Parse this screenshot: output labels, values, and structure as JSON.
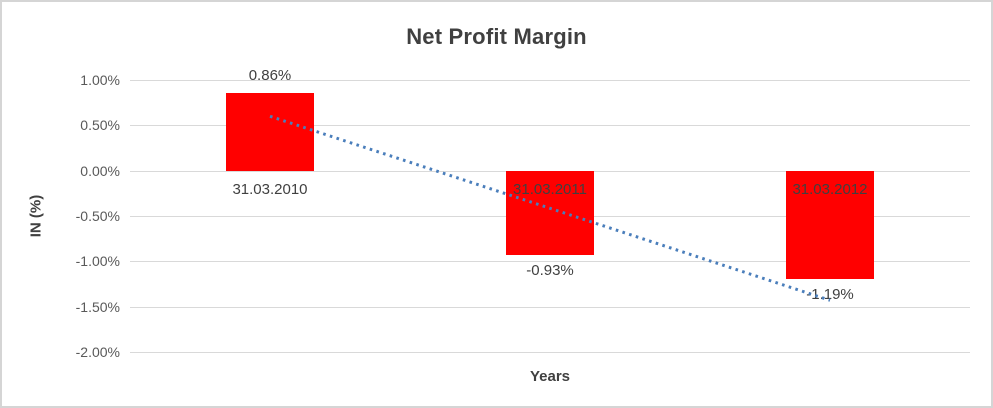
{
  "frame": {
    "border_color": "#d5d5d5",
    "background": "#ffffff"
  },
  "chart_data": {
    "type": "bar",
    "title": "Net Profit Margin",
    "xlabel": "Years",
    "ylabel": "IN (%)",
    "categories": [
      "31.03.2010",
      "31.03.2011",
      "31.03.2012"
    ],
    "values": [
      0.86,
      -0.93,
      -1.19
    ],
    "data_labels": [
      "0.86%",
      "-0.93%",
      "-1.19%"
    ],
    "ylim": [
      -2.0,
      1.0
    ],
    "ytick_step": 0.5,
    "ytick_labels": [
      "1.00%",
      "0.50%",
      "0.00%",
      "-0.50%",
      "-1.00%",
      "-1.50%",
      "-2.00%"
    ],
    "grid": true,
    "legend": "none",
    "bar_color": "#ff0000",
    "gridline_color": "#d9d9d9",
    "title_color": "#404040",
    "label_color": "#404040",
    "tick_color": "#595959",
    "trendline": {
      "type": "linear",
      "style": "dotted",
      "color": "#4a7ebb",
      "start_value": 0.6,
      "end_value": -1.43
    }
  }
}
